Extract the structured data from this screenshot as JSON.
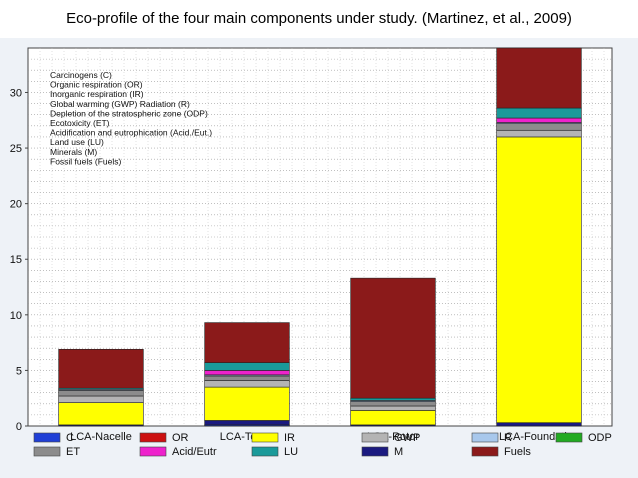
{
  "title": "Eco-profile of the four main components under study. (Martinez, et al., 2009)",
  "chart_data": {
    "type": "bar",
    "stacked": true,
    "ylim": [
      0,
      34
    ],
    "yticks": [
      0,
      5,
      10,
      15,
      20,
      25,
      30
    ],
    "grid": true,
    "legend_placement": "top-left and bottom",
    "categories": [
      "LCA-Nacelle",
      "LCA-Tower",
      "LCA-Rotor",
      "LCA-Foundation"
    ],
    "category_legend": [
      "Carcinogens (C)",
      "Organic respiration (OR)",
      "Inorganic respiration (IR)",
      "Global warming (GWP) Radiation (R)",
      "Depletion of the stratospheric zone (ODP)",
      "Ecotoxicity (ET)",
      "Acidification and eutrophication (Acid./Eut.)",
      "Land use (LU)",
      "Minerals (M)",
      "Fossil fuels (Fuels)"
    ],
    "series": [
      {
        "name": "C",
        "color": "#1f3fd6",
        "values": [
          0.0,
          0.1,
          0.0,
          0.0
        ]
      },
      {
        "name": "M",
        "color": "#1a1a80",
        "values": [
          0.1,
          0.4,
          0.1,
          0.3
        ]
      },
      {
        "name": "IR",
        "color": "#ffff00",
        "values": [
          2.0,
          3.0,
          1.3,
          25.7
        ]
      },
      {
        "name": "GWP",
        "color": "#b4b4b4",
        "values": [
          0.6,
          0.6,
          0.4,
          0.6
        ]
      },
      {
        "name": "ET",
        "color": "#8c8c8c",
        "values": [
          0.5,
          0.4,
          0.4,
          0.6
        ]
      },
      {
        "name": "R",
        "color": "#a8c8ec",
        "values": [
          0.1,
          0.1,
          0.1,
          0.1
        ]
      },
      {
        "name": "Acid/Eutr",
        "color": "#ee22cc",
        "values": [
          0.0,
          0.4,
          0.0,
          0.4
        ]
      },
      {
        "name": "ODP",
        "color": "#22aa22",
        "values": [
          0.0,
          0.0,
          0.0,
          0.0
        ]
      },
      {
        "name": "LU",
        "color": "#1a9a9a",
        "values": [
          0.1,
          0.7,
          0.2,
          0.9
        ]
      },
      {
        "name": "OR",
        "color": "#cc1111",
        "values": [
          0.0,
          0.0,
          0.0,
          0.0
        ]
      },
      {
        "name": "Fuels",
        "color": "#8b1a1a",
        "values": [
          3.5,
          3.6,
          10.8,
          5.5
        ]
      }
    ],
    "bottom_legend": [
      {
        "name": "C",
        "color": "#1f3fd6"
      },
      {
        "name": "OR",
        "color": "#cc1111"
      },
      {
        "name": "IR",
        "color": "#ffff00"
      },
      {
        "name": "R",
        "color": "#a8c8ec"
      },
      {
        "name": "ODP",
        "color": "#22aa22"
      },
      {
        "name": "ET",
        "color": "#8c8c8c"
      },
      {
        "name": "Acid/Eutr",
        "color": "#ee22cc"
      },
      {
        "name": "LU",
        "color": "#1a9a9a"
      },
      {
        "name": "GWP",
        "color": "#b4b4b4"
      },
      {
        "name": "M",
        "color": "#1a1a80"
      },
      {
        "name": "Fuels",
        "color": "#8b1a1a"
      }
    ]
  }
}
